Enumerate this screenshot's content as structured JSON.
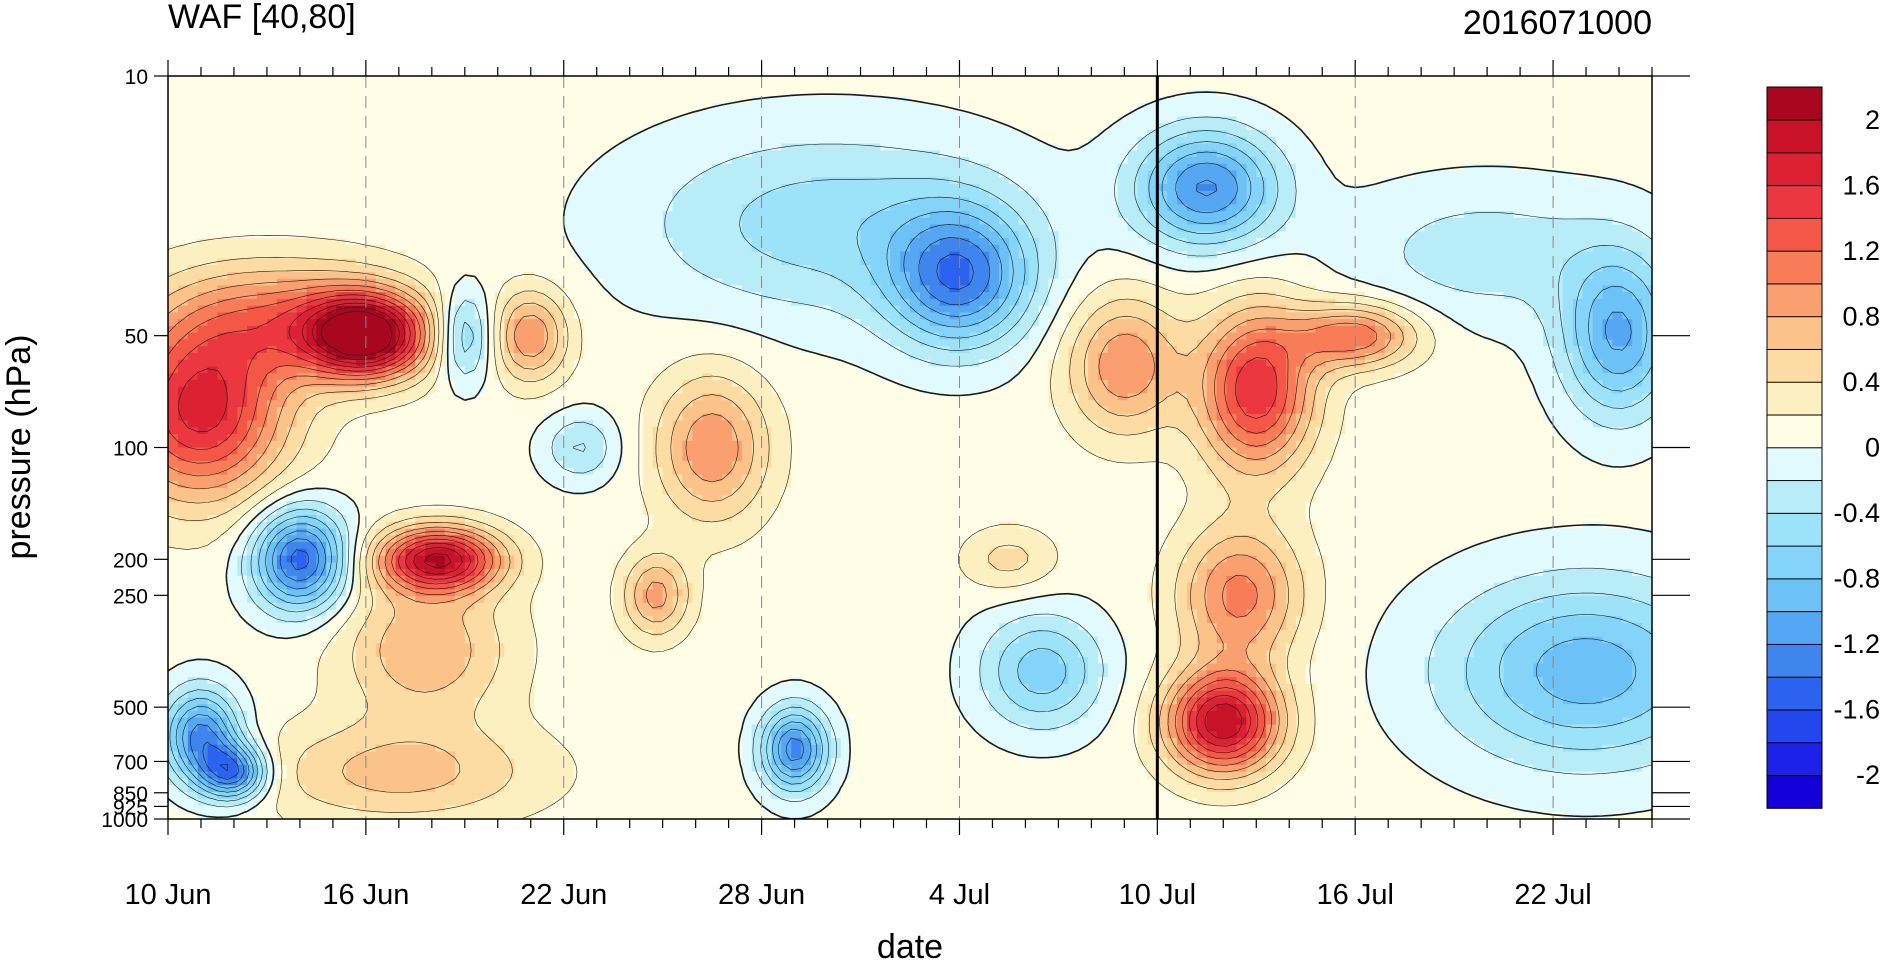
{
  "chart_data": {
    "type": "heatmap",
    "title_left": "WAF [40,80]",
    "title_right": "2016071000",
    "xlabel": "date",
    "ylabel": "pressure (hPa)",
    "x_ticks": [
      {
        "day": 0,
        "label": "10 Jun"
      },
      {
        "day": 6,
        "label": "16 Jun"
      },
      {
        "day": 12,
        "label": "22 Jun"
      },
      {
        "day": 18,
        "label": "28 Jun"
      },
      {
        "day": 24,
        "label": "4 Jul"
      },
      {
        "day": 30,
        "label": "10 Jul"
      },
      {
        "day": 36,
        "label": "16 Jul"
      },
      {
        "day": 42,
        "label": "22 Jul"
      }
    ],
    "x_range_days": [
      0,
      45
    ],
    "y_ticks": [
      {
        "p": 10,
        "label": "10"
      },
      {
        "p": 50,
        "label": "50"
      },
      {
        "p": 100,
        "label": "100"
      },
      {
        "p": 200,
        "label": "200"
      },
      {
        "p": 250,
        "label": "250"
      },
      {
        "p": 500,
        "label": "500"
      },
      {
        "p": 700,
        "label": "700"
      },
      {
        "p": 850,
        "label": "850"
      },
      {
        "p": 925,
        "label": "925"
      },
      {
        "p": 1000,
        "label": "1000"
      }
    ],
    "y_scale": "log",
    "y_range": [
      1000,
      10
    ],
    "vertical_marker_day": 30,
    "levels": [
      -2.2,
      -2.0,
      -1.8,
      -1.6,
      -1.4,
      -1.2,
      -1.0,
      -0.8,
      -0.6,
      -0.4,
      -0.2,
      0,
      0.2,
      0.4,
      0.6,
      0.8,
      1.0,
      1.2,
      1.4,
      1.6,
      1.8,
      2.0,
      2.2
    ],
    "colorbar": {
      "colors": [
        "#1400d8",
        "#1d22e8",
        "#2446ee",
        "#2b63f0",
        "#3e86ee",
        "#55a6f3",
        "#6cc1f7",
        "#84d3f8",
        "#9ce2f9",
        "#b8edf8",
        "#e0fafd",
        "#fffde6",
        "#fdf0c0",
        "#fcdca3",
        "#fbc38a",
        "#fa9f70",
        "#f87c58",
        "#f55747",
        "#ec3640",
        "#dc2133",
        "#c91228",
        "#a8071f"
      ],
      "labels": [
        {
          "index": 1,
          "text": "-2"
        },
        {
          "index": 3,
          "text": "-1.6"
        },
        {
          "index": 5,
          "text": "-1.2"
        },
        {
          "index": 7,
          "text": "-0.8"
        },
        {
          "index": 9,
          "text": "-0.4"
        },
        {
          "index": 11,
          "text": "0"
        },
        {
          "index": 13,
          "text": "0.4"
        },
        {
          "index": 15,
          "text": "0.8"
        },
        {
          "index": 17,
          "text": "1.2"
        },
        {
          "index": 19,
          "text": "1.6"
        },
        {
          "index": 21,
          "text": "2"
        }
      ]
    },
    "features": [
      {
        "day": 6.0,
        "p": 50,
        "value": 2.2,
        "sd": 1.3,
        "sp": 0.18
      },
      {
        "day": 1.0,
        "p": 80,
        "value": 1.6,
        "sd": 1.8,
        "sp": 0.38
      },
      {
        "day": 3.5,
        "p": 45,
        "value": 0.9,
        "sd": 2.5,
        "sp": 0.25
      },
      {
        "day": 8.2,
        "p": 200,
        "value": 1.9,
        "sd": 1.3,
        "sp": 0.14
      },
      {
        "day": 7.8,
        "p": 350,
        "value": 0.7,
        "sd": 1.8,
        "sp": 0.3
      },
      {
        "day": 7.0,
        "p": 750,
        "value": 0.6,
        "sd": 3.0,
        "sp": 0.22
      },
      {
        "day": 4.0,
        "p": 200,
        "value": -1.6,
        "sd": 1.0,
        "sp": 0.22
      },
      {
        "day": 1.0,
        "p": 600,
        "value": -1.4,
        "sd": 0.8,
        "sp": 0.2
      },
      {
        "day": 2.0,
        "p": 750,
        "value": -1.4,
        "sd": 0.7,
        "sp": 0.12
      },
      {
        "day": 9.0,
        "p": 50,
        "value": -0.8,
        "sd": 0.6,
        "sp": 0.2
      },
      {
        "day": 11.0,
        "p": 50,
        "value": 0.9,
        "sd": 0.8,
        "sp": 0.2
      },
      {
        "day": 12.5,
        "p": 100,
        "value": -0.5,
        "sd": 0.8,
        "sp": 0.15
      },
      {
        "day": 16.5,
        "p": 100,
        "value": 0.9,
        "sd": 1.2,
        "sp": 0.32
      },
      {
        "day": 14.8,
        "p": 250,
        "value": 0.8,
        "sd": 0.7,
        "sp": 0.18
      },
      {
        "day": 19.0,
        "p": 650,
        "value": -1.4,
        "sd": 0.7,
        "sp": 0.18
      },
      {
        "day": 24.0,
        "p": 35,
        "value": -1.3,
        "sd": 1.5,
        "sp": 0.3
      },
      {
        "day": 20.0,
        "p": 25,
        "value": -0.6,
        "sd": 4.0,
        "sp": 0.4
      },
      {
        "day": 29.0,
        "p": 60,
        "value": 0.9,
        "sd": 1.2,
        "sp": 0.3
      },
      {
        "day": 25.5,
        "p": 200,
        "value": 0.4,
        "sd": 1.0,
        "sp": 0.14
      },
      {
        "day": 26.5,
        "p": 400,
        "value": -0.8,
        "sd": 1.3,
        "sp": 0.25
      },
      {
        "day": 31.5,
        "p": 20,
        "value": -1.3,
        "sd": 1.5,
        "sp": 0.25
      },
      {
        "day": 33.0,
        "p": 70,
        "value": 1.5,
        "sd": 1.2,
        "sp": 0.35
      },
      {
        "day": 36.0,
        "p": 50,
        "value": 1.1,
        "sd": 1.3,
        "sp": 0.14
      },
      {
        "day": 32.0,
        "p": 550,
        "value": 1.9,
        "sd": 1.2,
        "sp": 0.22
      },
      {
        "day": 32.5,
        "p": 250,
        "value": 1.0,
        "sd": 1.3,
        "sp": 0.3
      },
      {
        "day": 43.0,
        "p": 400,
        "value": -1.0,
        "sd": 3.0,
        "sp": 0.4
      },
      {
        "day": 44.0,
        "p": 50,
        "value": -1.1,
        "sd": 1.2,
        "sp": 0.35
      },
      {
        "day": 40.0,
        "p": 30,
        "value": -0.4,
        "sd": 3.0,
        "sp": 0.3
      }
    ]
  }
}
